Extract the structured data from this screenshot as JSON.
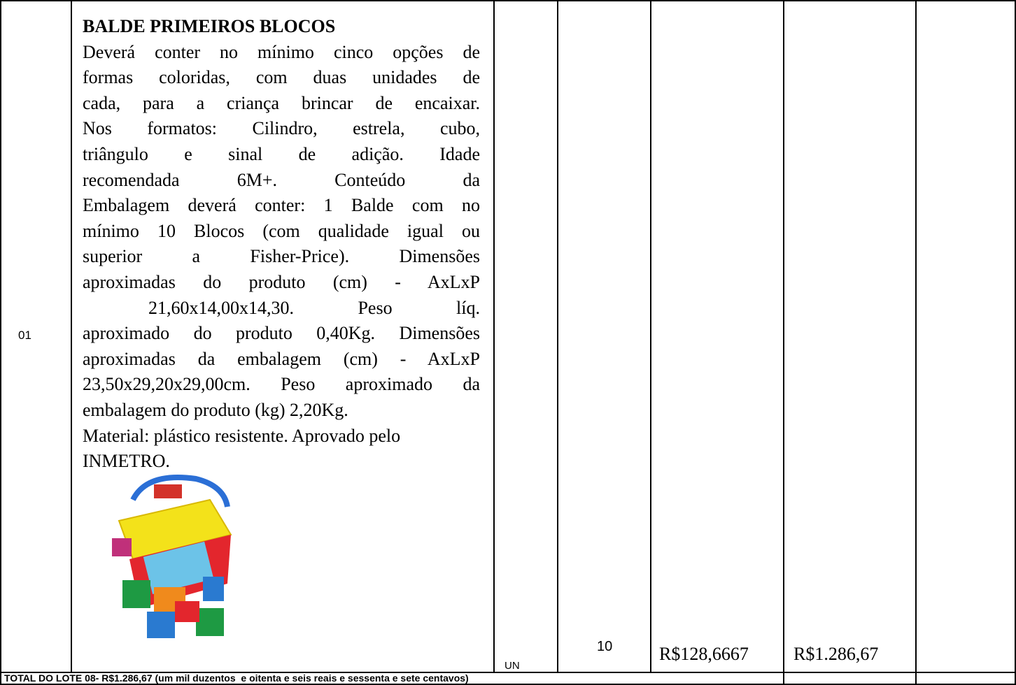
{
  "table": {
    "rows": [
      {
        "item": "01",
        "title": "BALDE PRIMEIROS BLOCOS",
        "description_lines": [
          "Deverá conter no mínimo cinco opções de",
          "formas coloridas, com duas unidades de",
          "cada, para a criança brincar de encaixar.",
          "Nos formatos: Cilindro, estrela, cubo,",
          "triângulo e sinal de adição. Idade",
          "recomendada 6M+. Conteúdo da",
          "Embalagem deverá conter: 1 Balde com no",
          "mínimo 10 Blocos (com qualidade igual ou",
          "superior a Fisher-Price). Dimensões",
          "aproximadas do produto (cm) - AxLxP",
          "21,60x14,00x14,30. Peso líq.",
          "aproximado do produto 0,40Kg. Dimensões",
          "aproximadas da embalagem (cm) - AxLxP",
          "23,50x29,20x29,00cm. Peso aproximado da",
          "embalagem do produto (kg) 2,20Kg.",
          "Material: plástico resistente. Aprovado pelo",
          "INMETRO."
        ],
        "unit": "UN",
        "quantity": "10",
        "unit_price": "R$128,6667",
        "total_price": "R$1.286,67"
      }
    ],
    "footer": {
      "total_text": "TOTAL DO LOTE 08- R$1.286,67 (um mil duzentos  e oitenta e seis reais e sessenta e sete centavos)"
    }
  }
}
